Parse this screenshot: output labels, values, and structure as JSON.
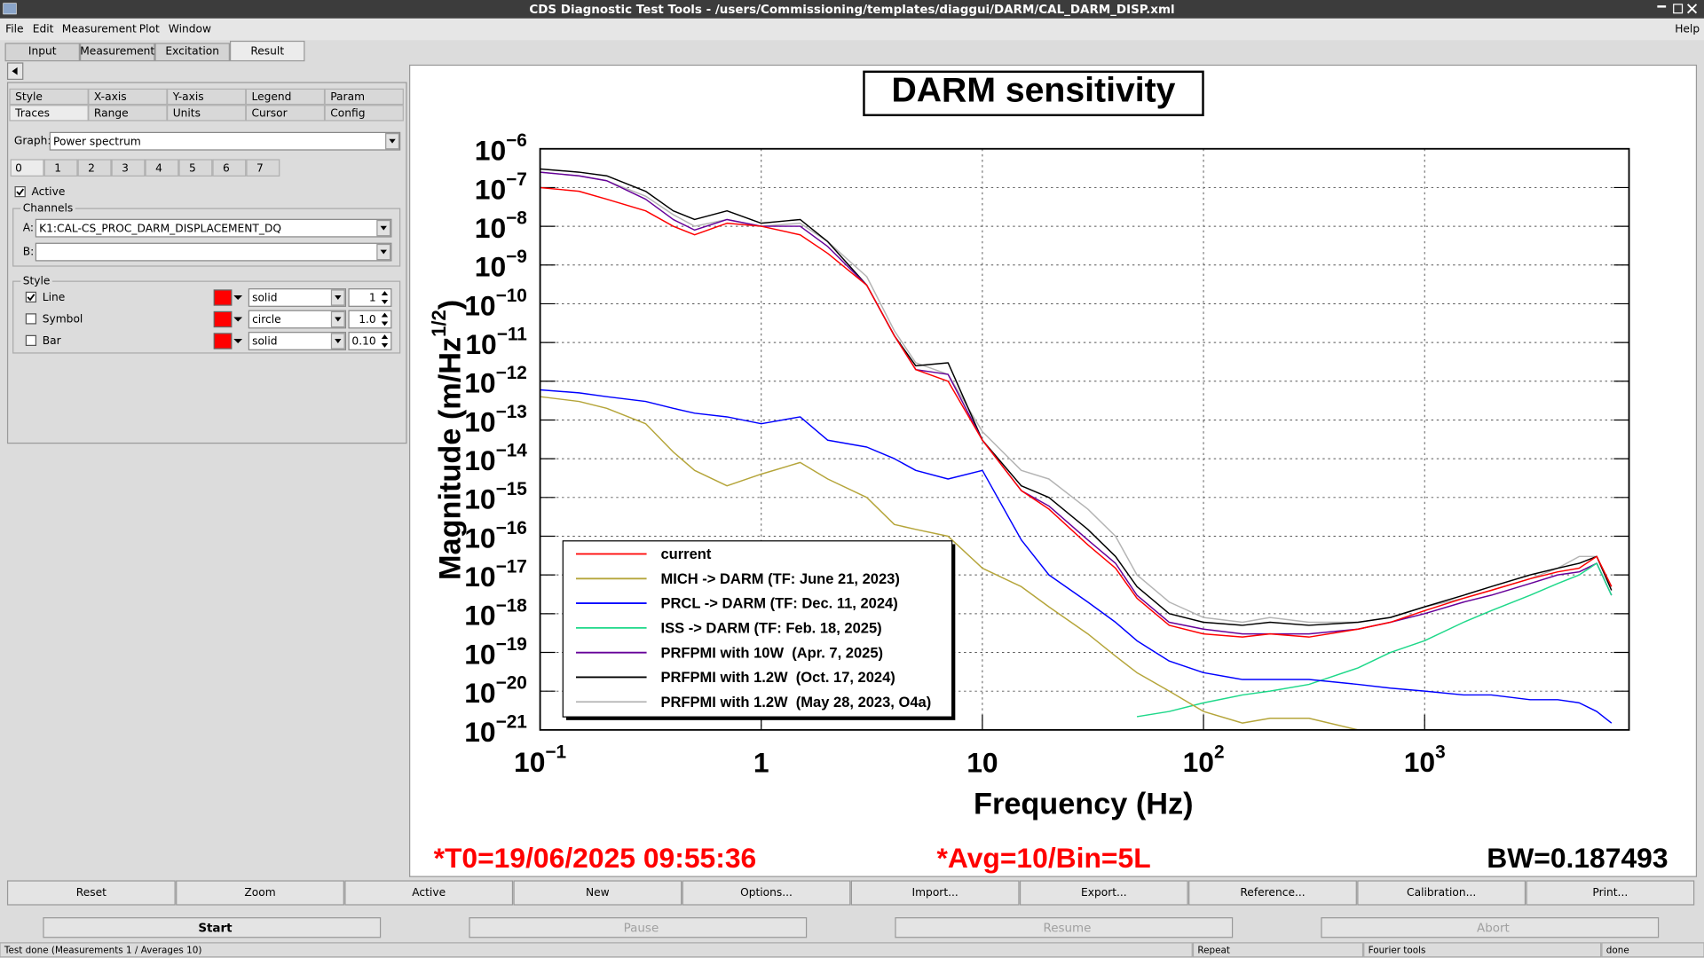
{
  "window": {
    "title": "CDS Diagnostic Test Tools - /users/Commissioning/templates/diaggui/DARM/CAL_DARM_DISP.xml"
  },
  "menu": [
    "File",
    "Edit",
    "Measurement",
    "Plot",
    "Window"
  ],
  "help": "Help",
  "tabs": [
    "Input",
    "Measurement",
    "Excitation",
    "Result"
  ],
  "subtabs_row1": [
    "Style",
    "X-axis",
    "Y-axis",
    "Legend",
    "Param"
  ],
  "subtabs_row2": [
    "Traces",
    "Range",
    "Units",
    "Cursor",
    "Config"
  ],
  "graph": {
    "label": "Graph:",
    "value": "Power spectrum"
  },
  "trace_tabs": [
    0,
    1,
    2,
    3,
    4,
    5,
    6,
    7
  ],
  "active": {
    "label": "Active",
    "checked": true
  },
  "channels": {
    "label": "Channels",
    "a_label": "A:",
    "a_value": "K1:CAL-CS_PROC_DARM_DISPLACEMENT_DQ",
    "b_label": "B:"
  },
  "style": {
    "label": "Style",
    "rows": [
      {
        "name": "Line",
        "checked": true,
        "color": "#ff0000",
        "kind": "solid",
        "size": "1"
      },
      {
        "name": "Symbol",
        "checked": false,
        "color": "#ff0000",
        "kind": "circle",
        "size": "1.0"
      },
      {
        "name": "Bar",
        "checked": false,
        "color": "#ff0000",
        "kind": "solid",
        "size": "0.10"
      }
    ]
  },
  "buttons": [
    "Reset",
    "Zoom",
    "Active",
    "New",
    "Options...",
    "Import...",
    "Export...",
    "Reference...",
    "Calibration...",
    "Print..."
  ],
  "controls": [
    {
      "label": "Start",
      "enabled": true
    },
    {
      "label": "Pause",
      "enabled": false
    },
    {
      "label": "Resume",
      "enabled": false
    },
    {
      "label": "Abort",
      "enabled": false
    }
  ],
  "status": [
    "Test done (Measurements 1 / Averages 10)",
    "Repeat",
    "Fourier tools",
    "done"
  ],
  "plot_info": {
    "t0": "*T0=19/06/2025 09:55:36",
    "avg": "*Avg=10/Bin=5L",
    "bw": "BW=0.187493"
  },
  "chart_data": {
    "type": "line",
    "title": "DARM sensitivity",
    "xlabel": "Frequency (Hz)",
    "ylabel": "Magnitude (m/Hz",
    "ylabel_exponent": "1/2",
    "ylabel_end": ")",
    "log_x": true,
    "log_y": true,
    "grid": true,
    "xlim": [
      0.1,
      8400
    ],
    "ylim": [
      1e-21,
      1e-06
    ],
    "xticks": [
      {
        "value": 0.1,
        "label": "10",
        "exponent": "−1"
      },
      1,
      10,
      {
        "value": 100,
        "label": "10",
        "exponent": "2"
      },
      {
        "value": 1000,
        "label": "10",
        "exponent": "3"
      }
    ],
    "yticks": [
      {
        "value": 1e-06,
        "label": "10",
        "exponent": "−6"
      },
      {
        "value": 1e-07,
        "label": "10",
        "exponent": "−7"
      },
      {
        "value": 1e-08,
        "label": "10",
        "exponent": "−8"
      },
      {
        "value": 1e-09,
        "label": "10",
        "exponent": "−9"
      },
      {
        "value": 1e-10,
        "label": "10",
        "exponent": "−10"
      },
      {
        "value": 1e-11,
        "label": "10",
        "exponent": "−11"
      },
      {
        "value": 1e-12,
        "label": "10",
        "exponent": "−12"
      },
      {
        "value": 1e-13,
        "label": "10",
        "exponent": "−13"
      },
      {
        "value": 1e-14,
        "label": "10",
        "exponent": "−14"
      },
      {
        "value": 1e-15,
        "label": "10",
        "exponent": "−15"
      },
      {
        "value": 1e-16,
        "label": "10",
        "exponent": "−16"
      },
      {
        "value": 1e-17,
        "label": "10",
        "exponent": "−17"
      },
      {
        "value": 1e-18,
        "label": "10",
        "exponent": "−18"
      },
      {
        "value": 1e-19,
        "label": "10",
        "exponent": "−19"
      },
      {
        "value": 1e-20,
        "label": "10",
        "exponent": "−20"
      },
      {
        "value": 1e-21,
        "label": "10",
        "exponent": "−21"
      }
    ],
    "x": [
      0.1,
      0.15,
      0.2,
      0.3,
      0.4,
      0.5,
      0.7,
      1,
      1.5,
      2,
      3,
      4,
      5,
      7,
      10,
      15,
      20,
      30,
      40,
      50,
      70,
      100,
      150,
      200,
      300,
      500,
      700,
      1000,
      1500,
      2000,
      3000,
      4000,
      5000,
      6000,
      7000
    ],
    "series": [
      {
        "name": "current",
        "color": "#ff0000",
        "values": [
          1e-07,
          8e-08,
          5e-08,
          2.5e-08,
          1e-08,
          6e-09,
          1.2e-08,
          1e-08,
          6e-09,
          2e-09,
          3e-10,
          1.5e-11,
          2e-12,
          1e-12,
          3e-14,
          1.5e-15,
          5e-16,
          6e-17,
          1.5e-17,
          2.5e-18,
          5e-19,
          3e-19,
          2.5e-19,
          3e-19,
          2.5e-19,
          4e-19,
          6e-19,
          1.2e-18,
          2.5e-18,
          4e-18,
          8e-18,
          1.2e-17,
          1.5e-17,
          3e-17,
          5e-18
        ]
      },
      {
        "name": "MICH -> DARM (TF: June 21, 2023)",
        "color": "#b5a53a",
        "values": [
          4e-13,
          3e-13,
          2e-13,
          8e-14,
          1.5e-14,
          5e-15,
          2e-15,
          4e-15,
          8e-15,
          3e-15,
          1e-15,
          2e-16,
          1.5e-16,
          1e-16,
          1.5e-17,
          5e-18,
          1.5e-18,
          3e-19,
          8e-20,
          3e-20,
          1e-20,
          3e-21,
          1.5e-21,
          2e-21,
          2e-21,
          1e-21,
          null,
          null,
          null,
          null,
          null,
          null,
          null,
          null,
          null
        ]
      },
      {
        "name": "PRCL -> DARM (TF: Dec. 11, 2024)",
        "color": "#0000ff",
        "values": [
          6e-13,
          5e-13,
          4e-13,
          3e-13,
          2e-13,
          1.5e-13,
          1.2e-13,
          8e-14,
          1.2e-13,
          3e-14,
          2e-14,
          1e-14,
          5e-15,
          3e-15,
          5e-15,
          8e-17,
          1e-17,
          2e-18,
          6e-19,
          2e-19,
          6e-20,
          3e-20,
          2e-20,
          2e-20,
          2e-20,
          1.5e-20,
          1.2e-20,
          1e-20,
          8e-21,
          8e-21,
          6e-21,
          6e-21,
          5e-21,
          3e-21,
          1.5e-21
        ]
      },
      {
        "name": "ISS -> DARM (TF: Feb. 18, 2025)",
        "color": "#1fd88a",
        "values": [
          null,
          null,
          null,
          null,
          null,
          null,
          null,
          null,
          null,
          null,
          null,
          null,
          null,
          null,
          null,
          null,
          null,
          null,
          null,
          2.2e-21,
          3e-21,
          5e-21,
          8e-21,
          1e-20,
          1.5e-20,
          4e-20,
          1e-19,
          2e-19,
          6e-19,
          1.2e-18,
          3e-18,
          6e-18,
          1e-17,
          2e-17,
          3e-18
        ]
      },
      {
        "name": "PRFPMI with 10W  (Apr. 7, 2025)",
        "color": "#660099",
        "values": [
          2.5e-07,
          2e-07,
          1.5e-07,
          5e-08,
          1.5e-08,
          8e-09,
          1.5e-08,
          1e-08,
          1e-08,
          3e-09,
          3e-10,
          1.5e-11,
          2e-12,
          1.5e-12,
          3e-14,
          1.5e-15,
          6e-16,
          8e-17,
          2e-17,
          3e-18,
          6e-19,
          4e-19,
          3e-19,
          3e-19,
          3e-19,
          4e-19,
          6e-19,
          1e-18,
          2e-18,
          3e-18,
          6e-18,
          1e-17,
          1.2e-17,
          2e-17,
          3e-18
        ]
      },
      {
        "name": "PRFPMI with 1.2W  (Oct. 17, 2024)",
        "color": "#000000",
        "values": [
          3e-07,
          2.5e-07,
          2e-07,
          8e-08,
          2.5e-08,
          1.5e-08,
          2.5e-08,
          1.2e-08,
          1.5e-08,
          4e-09,
          3e-10,
          1.5e-11,
          2.5e-12,
          3e-12,
          3e-14,
          2e-15,
          1e-15,
          1.5e-16,
          3e-17,
          5e-18,
          1e-18,
          6e-19,
          5e-19,
          6e-19,
          5e-19,
          6e-19,
          8e-19,
          1.5e-18,
          3e-18,
          5e-18,
          1e-17,
          1.5e-17,
          2e-17,
          3e-17,
          4e-18
        ]
      },
      {
        "name": "PRFPMI with 1.2W  (May 28, 2023, O4a)",
        "color": "#b4b4b4",
        "values": [
          2.5e-07,
          2e-07,
          1.5e-07,
          6e-08,
          2e-08,
          1e-08,
          1.5e-08,
          1e-08,
          1.2e-08,
          4e-09,
          5e-10,
          2e-11,
          3e-12,
          1.5e-12,
          5e-14,
          5e-15,
          3e-15,
          5e-16,
          1e-16,
          1e-17,
          2e-18,
          8e-19,
          6e-19,
          8e-19,
          6e-19,
          6e-19,
          8e-19,
          1.5e-18,
          2.5e-18,
          4e-18,
          8e-18,
          1.5e-17,
          3e-17,
          3e-17,
          5e-18
        ]
      }
    ]
  }
}
